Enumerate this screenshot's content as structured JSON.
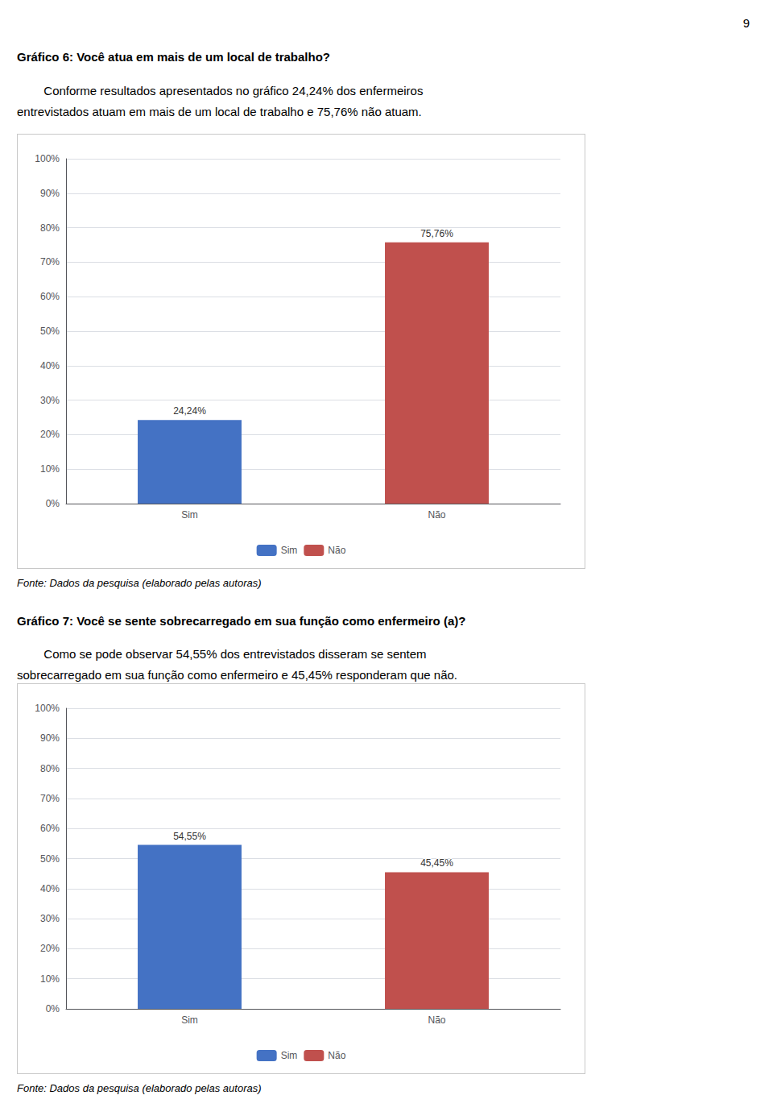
{
  "page_number": "9",
  "chart_data": [
    {
      "type": "bar",
      "title": "Gráfico 6: Você atua em mais de um local de trabalho?",
      "subtitle": [
        "        Conforme resultados apresentados no gráfico 24,24% dos enfermeiros",
        "entrevistados atuam em mais de um local de trabalho e 75,76% não atuam."
      ],
      "annotations": [
        "Fonte: Dados da pesquisa (elaborado pelas autoras)"
      ],
      "categories": [
        "Sim",
        "Não"
      ],
      "values": [
        24.24,
        75.76
      ],
      "value_labels": [
        "24,24%",
        "75,76%"
      ],
      "data_labels": true,
      "colors": [
        "#4472C4",
        "#C0504D"
      ],
      "ylim": [
        0,
        100
      ],
      "yticks": [
        {
          "value": 0,
          "label": "0%"
        },
        {
          "value": 10,
          "label": "10%"
        },
        {
          "value": 20,
          "label": "20%"
        },
        {
          "value": 30,
          "label": "30%"
        },
        {
          "value": 40,
          "label": "40%"
        },
        {
          "value": 50,
          "label": "50%"
        },
        {
          "value": 60,
          "label": "60%"
        },
        {
          "value": 70,
          "label": "70%"
        },
        {
          "value": 80,
          "label": "80%"
        },
        {
          "value": 90,
          "label": "90%"
        },
        {
          "value": 100,
          "label": "100%"
        }
      ],
      "grid": true,
      "legend": "bottom"
    },
    {
      "type": "bar",
      "title": "Gráfico 7: Você se sente sobrecarregado em sua função como enfermeiro (a)?",
      "subtitle": [
        "        Como se pode observar 54,55% dos entrevistados disseram se sentem",
        "sobrecarregado em sua função como enfermeiro e 45,45% responderam que não."
      ],
      "annotations": [
        "Fonte: Dados da pesquisa (elaborado pelas autoras)"
      ],
      "categories": [
        "Sim",
        "Não"
      ],
      "values": [
        54.55,
        45.45
      ],
      "value_labels": [
        "54,55%",
        "45,45%"
      ],
      "data_labels": true,
      "colors": [
        "#4472C4",
        "#C0504D"
      ],
      "ylim": [
        0,
        100
      ],
      "yticks": [
        {
          "value": 0,
          "label": "0%"
        },
        {
          "value": 10,
          "label": "10%"
        },
        {
          "value": 20,
          "label": "20%"
        },
        {
          "value": 30,
          "label": "30%"
        },
        {
          "value": 40,
          "label": "40%"
        },
        {
          "value": 50,
          "label": "50%"
        },
        {
          "value": 60,
          "label": "60%"
        },
        {
          "value": 70,
          "label": "70%"
        },
        {
          "value": 80,
          "label": "80%"
        },
        {
          "value": 90,
          "label": "90%"
        },
        {
          "value": 100,
          "label": "100%"
        }
      ],
      "grid": true,
      "legend": "bottom"
    }
  ]
}
